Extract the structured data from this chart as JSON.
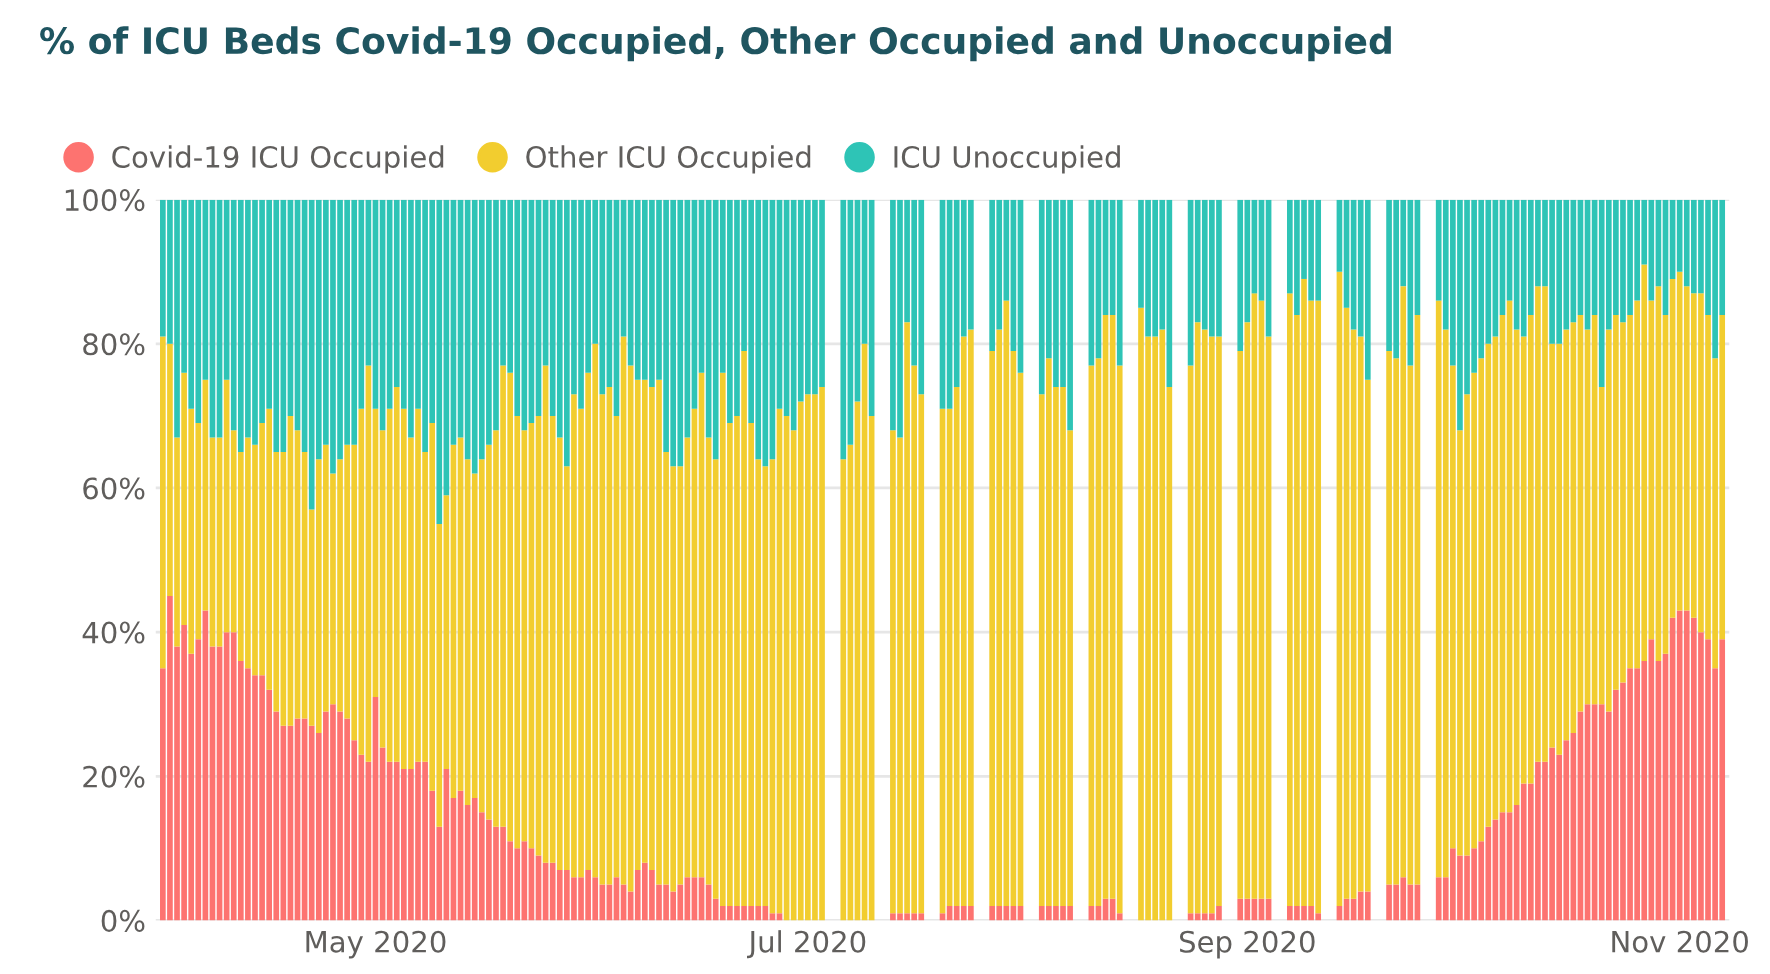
{
  "chart_data": {
    "type": "bar",
    "stacked": true,
    "title": "% of ICU Beds Covid-19 Occupied, Other Occupied and Unoccupied",
    "x": [
      "2020-04-01",
      "2020-04-02",
      "2020-04-03",
      "2020-04-04",
      "2020-04-05",
      "2020-04-06",
      "2020-04-07",
      "2020-04-08",
      "2020-04-09",
      "2020-04-10",
      "2020-04-11",
      "2020-04-12",
      "2020-04-13",
      "2020-04-14",
      "2020-04-15",
      "2020-04-16",
      "2020-04-17",
      "2020-04-18",
      "2020-04-19",
      "2020-04-20",
      "2020-04-21",
      "2020-04-22",
      "2020-04-23",
      "2020-04-24",
      "2020-04-25",
      "2020-04-26",
      "2020-04-27",
      "2020-04-28",
      "2020-04-29",
      "2020-04-30",
      "2020-05-01",
      "2020-05-02",
      "2020-05-03",
      "2020-05-04",
      "2020-05-05",
      "2020-05-06",
      "2020-05-07",
      "2020-05-08",
      "2020-05-09",
      "2020-05-10",
      "2020-05-11",
      "2020-05-12",
      "2020-05-13",
      "2020-05-14",
      "2020-05-15",
      "2020-05-16",
      "2020-05-17",
      "2020-05-18",
      "2020-05-19",
      "2020-05-20",
      "2020-05-21",
      "2020-05-22",
      "2020-05-23",
      "2020-05-24",
      "2020-05-25",
      "2020-05-26",
      "2020-05-27",
      "2020-05-28",
      "2020-05-29",
      "2020-05-30",
      "2020-05-31",
      "2020-06-01",
      "2020-06-02",
      "2020-06-03",
      "2020-06-04",
      "2020-06-05",
      "2020-06-06",
      "2020-06-07",
      "2020-06-08",
      "2020-06-09",
      "2020-06-10",
      "2020-06-11",
      "2020-06-12",
      "2020-06-13",
      "2020-06-14",
      "2020-06-15",
      "2020-06-16",
      "2020-06-17",
      "2020-06-18",
      "2020-06-19",
      "2020-06-20",
      "2020-06-21",
      "2020-06-22",
      "2020-06-23",
      "2020-06-24",
      "2020-06-25",
      "2020-06-26",
      "2020-06-27",
      "2020-06-28",
      "2020-06-29",
      "2020-06-30",
      "2020-07-01",
      "2020-07-02",
      "2020-07-03",
      "2020-07-06",
      "2020-07-07",
      "2020-07-08",
      "2020-07-09",
      "2020-07-10",
      "2020-07-13",
      "2020-07-14",
      "2020-07-15",
      "2020-07-16",
      "2020-07-17",
      "2020-07-20",
      "2020-07-21",
      "2020-07-22",
      "2020-07-23",
      "2020-07-24",
      "2020-07-27",
      "2020-07-28",
      "2020-07-29",
      "2020-07-30",
      "2020-07-31",
      "2020-08-03",
      "2020-08-04",
      "2020-08-05",
      "2020-08-06",
      "2020-08-07",
      "2020-08-10",
      "2020-08-11",
      "2020-08-12",
      "2020-08-13",
      "2020-08-14",
      "2020-08-17",
      "2020-08-18",
      "2020-08-19",
      "2020-08-20",
      "2020-08-21",
      "2020-08-24",
      "2020-08-25",
      "2020-08-26",
      "2020-08-27",
      "2020-08-28",
      "2020-08-31",
      "2020-09-01",
      "2020-09-02",
      "2020-09-03",
      "2020-09-04",
      "2020-09-07",
      "2020-09-08",
      "2020-09-09",
      "2020-09-10",
      "2020-09-11",
      "2020-09-14",
      "2020-09-15",
      "2020-09-16",
      "2020-09-17",
      "2020-09-18",
      "2020-09-21",
      "2020-09-22",
      "2020-09-23",
      "2020-09-24",
      "2020-09-25",
      "2020-09-28",
      "2020-09-29",
      "2020-09-30",
      "2020-10-01",
      "2020-10-02",
      "2020-10-03",
      "2020-10-04",
      "2020-10-05",
      "2020-10-06",
      "2020-10-07",
      "2020-10-08",
      "2020-10-09",
      "2020-10-10",
      "2020-10-11",
      "2020-10-12",
      "2020-10-13",
      "2020-10-14",
      "2020-10-15",
      "2020-10-16",
      "2020-10-17",
      "2020-10-18",
      "2020-10-19",
      "2020-10-20",
      "2020-10-21",
      "2020-10-22",
      "2020-10-23",
      "2020-10-24",
      "2020-10-25",
      "2020-10-26",
      "2020-10-27",
      "2020-10-28",
      "2020-10-29",
      "2020-10-30",
      "2020-10-31",
      "2020-11-01",
      "2020-11-02",
      "2020-11-03",
      "2020-11-04",
      "2020-11-05",
      "2020-11-06",
      "2020-11-07"
    ],
    "series": [
      {
        "name": "Covid-19 ICU Occupied",
        "color": "#fd7370",
        "values": [
          35,
          45,
          38,
          41,
          37,
          39,
          43,
          38,
          38,
          40,
          40,
          36,
          35,
          34,
          34,
          32,
          29,
          27,
          27,
          28,
          28,
          27,
          26,
          29,
          30,
          29,
          28,
          25,
          23,
          22,
          31,
          24,
          22,
          22,
          21,
          21,
          22,
          22,
          18,
          13,
          21,
          17,
          18,
          16,
          17,
          15,
          14,
          13,
          13,
          11,
          10,
          11,
          10,
          9,
          8,
          8,
          7,
          7,
          6,
          6,
          7,
          6,
          5,
          5,
          6,
          5,
          4,
          7,
          8,
          7,
          5,
          5,
          4,
          5,
          6,
          6,
          6,
          5,
          3,
          2,
          2,
          2,
          2,
          2,
          2,
          2,
          1,
          1,
          0,
          0,
          0,
          0,
          0,
          0,
          0,
          0,
          0,
          0,
          0,
          1,
          1,
          1,
          1,
          1,
          1,
          2,
          2,
          2,
          2,
          2,
          2,
          2,
          2,
          2,
          2,
          2,
          2,
          2,
          2,
          2,
          2,
          3,
          3,
          1,
          0,
          0,
          0,
          0,
          0,
          1,
          1,
          1,
          1,
          2,
          3,
          3,
          3,
          3,
          3,
          2,
          2,
          2,
          2,
          1,
          2,
          3,
          3,
          4,
          4,
          5,
          5,
          6,
          5,
          5,
          6,
          6,
          10,
          9,
          9,
          10,
          11,
          13,
          14,
          15,
          15,
          16,
          19,
          19,
          22,
          22,
          24,
          23,
          25,
          26,
          29,
          30,
          30,
          30,
          29,
          32,
          33,
          35,
          35,
          36,
          39,
          36,
          37,
          42,
          43,
          43,
          42,
          40,
          39,
          35,
          39
        ]
      },
      {
        "name": "Other ICU Occupied",
        "color": "#f2cd2f",
        "values": [
          46,
          35,
          29,
          35,
          34,
          30,
          32,
          29,
          29,
          35,
          28,
          29,
          32,
          32,
          35,
          39,
          36,
          38,
          43,
          40,
          37,
          30,
          38,
          37,
          32,
          35,
          38,
          41,
          48,
          55,
          40,
          44,
          49,
          52,
          50,
          46,
          49,
          43,
          51,
          42,
          38,
          49,
          49,
          48,
          45,
          49,
          52,
          55,
          64,
          65,
          60,
          57,
          59,
          61,
          69,
          62,
          60,
          56,
          67,
          65,
          69,
          74,
          68,
          69,
          64,
          76,
          73,
          68,
          67,
          67,
          70,
          60,
          59,
          58,
          61,
          65,
          70,
          62,
          61,
          74,
          67,
          68,
          77,
          67,
          62,
          61,
          63,
          70,
          70,
          68,
          72,
          73,
          73,
          74,
          64,
          66,
          72,
          80,
          70,
          67,
          66,
          82,
          76,
          72,
          70,
          69,
          72,
          79,
          80,
          77,
          80,
          84,
          77,
          74,
          71,
          76,
          72,
          72,
          66,
          75,
          76,
          81,
          81,
          76,
          85,
          81,
          81,
          82,
          74,
          76,
          82,
          81,
          80,
          79,
          76,
          80,
          84,
          83,
          78,
          85,
          82,
          87,
          84,
          85,
          88,
          82,
          79,
          77,
          71,
          74,
          73,
          82,
          72,
          79,
          80,
          76,
          67,
          59,
          64,
          66,
          67,
          67,
          67,
          69,
          71,
          66,
          62,
          65,
          66,
          66,
          56,
          57,
          57,
          57,
          55,
          52,
          54,
          44,
          53,
          52,
          50,
          49,
          51,
          55,
          47,
          52,
          47,
          47,
          47,
          45,
          45,
          47,
          45,
          43,
          45
        ]
      },
      {
        "name": "ICU Unoccupied",
        "color": "#2ec4b6",
        "values": [
          19,
          20,
          33,
          24,
          29,
          31,
          25,
          33,
          33,
          25,
          32,
          35,
          33,
          34,
          31,
          29,
          35,
          35,
          30,
          32,
          35,
          43,
          36,
          34,
          38,
          36,
          34,
          34,
          29,
          23,
          29,
          32,
          29,
          26,
          29,
          33,
          29,
          35,
          31,
          45,
          41,
          34,
          33,
          36,
          38,
          36,
          34,
          32,
          23,
          24,
          30,
          32,
          31,
          30,
          23,
          30,
          33,
          37,
          27,
          29,
          24,
          20,
          27,
          26,
          30,
          19,
          23,
          25,
          25,
          26,
          25,
          35,
          37,
          37,
          33,
          29,
          24,
          33,
          36,
          24,
          31,
          30,
          21,
          31,
          36,
          37,
          36,
          29,
          30,
          32,
          28,
          27,
          27,
          26,
          36,
          34,
          28,
          20,
          30,
          32,
          33,
          17,
          23,
          27,
          29,
          29,
          26,
          19,
          18,
          21,
          18,
          14,
          21,
          24,
          27,
          22,
          26,
          26,
          32,
          23,
          22,
          16,
          16,
          23,
          15,
          19,
          19,
          18,
          26,
          23,
          17,
          18,
          19,
          19,
          21,
          17,
          13,
          14,
          19,
          13,
          16,
          11,
          14,
          14,
          10,
          15,
          18,
          19,
          25,
          21,
          22,
          12,
          23,
          16,
          14,
          18,
          23,
          32,
          27,
          24,
          22,
          20,
          19,
          16,
          14,
          18,
          19,
          16,
          12,
          12,
          20,
          20,
          18,
          17,
          16,
          18,
          16,
          26,
          18,
          16,
          17,
          16,
          14,
          9,
          14,
          12,
          16,
          11,
          10,
          12,
          13,
          13,
          16,
          22,
          16
        ]
      }
    ],
    "xlim": [
      "2020-03-31",
      "2020-11-08"
    ],
    "xticks": [
      {
        "value": "2020-05-01",
        "label": "May 2020"
      },
      {
        "value": "2020-07-01",
        "label": "Jul 2020"
      },
      {
        "value": "2020-09-01",
        "label": "Sep 2020"
      },
      {
        "value": "2020-11-01",
        "label": "Nov 2020"
      }
    ],
    "ylim": [
      0,
      100
    ],
    "yticks": [
      {
        "value": 0,
        "label": "0%"
      },
      {
        "value": 20,
        "label": "20%"
      },
      {
        "value": 40,
        "label": "40%"
      },
      {
        "value": 60,
        "label": "60%"
      },
      {
        "value": 80,
        "label": "80%"
      },
      {
        "value": 100,
        "label": "100%"
      }
    ],
    "grid": "y",
    "legend": "top left"
  }
}
